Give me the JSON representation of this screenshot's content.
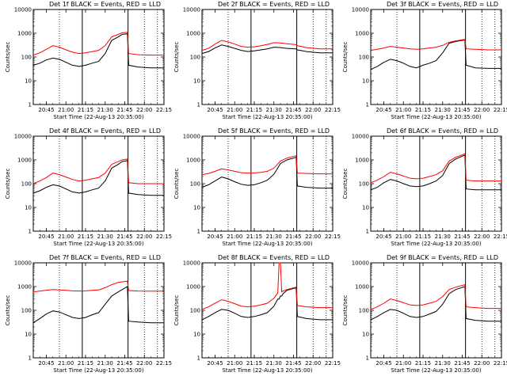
{
  "figure": {
    "series_names": [
      "Events",
      "LLD"
    ],
    "colors": {
      "Events": "#000000",
      "LLD": "#ff0000",
      "axes": "#000000"
    },
    "y_label": "Counts/sec",
    "x_label": "Start Time (22-Aug-13 20:35:00)",
    "x_tick_labels": [
      "20:45",
      "21:00",
      "21:15",
      "21:30",
      "21:45",
      "22:00",
      "22:15"
    ],
    "y_tick_labels": [
      "1",
      "10",
      "100",
      "1000",
      "10000"
    ],
    "y_scale": "log",
    "ylim": [
      1,
      10000
    ],
    "xlim_minutes_after_20_35": [
      0,
      100
    ]
  },
  "chart_data": [
    {
      "type": "line",
      "title": "Det 1f BLACK = Events, RED = LLD",
      "xlabel": "Start Time (22-Aug-13 20:35:00)",
      "ylabel": "Counts/sec",
      "x_minutes_after_20_35": [
        0,
        5,
        10,
        15,
        20,
        25,
        30,
        35,
        40,
        45,
        50,
        55,
        60,
        65,
        68,
        72,
        73,
        80,
        90,
        100
      ],
      "series": [
        {
          "name": "Events",
          "values": [
            45,
            55,
            75,
            90,
            80,
            60,
            45,
            40,
            45,
            55,
            65,
            140,
            500,
            700,
            900,
            950,
            45,
            38,
            35,
            35
          ]
        },
        {
          "name": "LLD",
          "values": [
            120,
            150,
            210,
            300,
            260,
            200,
            160,
            140,
            150,
            170,
            190,
            300,
            700,
            900,
            1050,
            1100,
            140,
            125,
            120,
            120
          ]
        }
      ]
    },
    {
      "type": "line",
      "title": "Det 2f BLACK = Events, RED = LLD",
      "xlabel": "Start Time (22-Aug-13 20:35:00)",
      "ylabel": "Counts/sec",
      "x_minutes_after_20_35": [
        0,
        5,
        10,
        15,
        20,
        25,
        30,
        35,
        40,
        45,
        50,
        55,
        60,
        65,
        72,
        73,
        80,
        90,
        100
      ],
      "series": [
        {
          "name": "Events",
          "values": [
            140,
            170,
            240,
            320,
            280,
            230,
            190,
            170,
            180,
            200,
            220,
            260,
            250,
            230,
            220,
            200,
            170,
            150,
            150
          ]
        },
        {
          "name": "LLD",
          "values": [
            190,
            230,
            350,
            500,
            430,
            350,
            280,
            260,
            270,
            300,
            340,
            400,
            390,
            360,
            330,
            300,
            250,
            220,
            220
          ]
        }
      ]
    },
    {
      "type": "line",
      "title": "Det 3f BLACK = Events, RED = LLD",
      "xlabel": "Start Time (22-Aug-13 20:35:00)",
      "ylabel": "Counts/sec",
      "x_minutes_after_20_35": [
        0,
        5,
        10,
        15,
        20,
        25,
        30,
        35,
        40,
        45,
        50,
        55,
        60,
        65,
        72,
        73,
        80,
        90,
        100
      ],
      "series": [
        {
          "name": "Events",
          "values": [
            30,
            40,
            60,
            80,
            70,
            55,
            40,
            35,
            45,
            55,
            70,
            150,
            380,
            450,
            520,
            45,
            35,
            33,
            33
          ]
        },
        {
          "name": "LLD",
          "values": [
            190,
            210,
            240,
            280,
            260,
            240,
            220,
            210,
            220,
            240,
            260,
            310,
            420,
            480,
            550,
            220,
            210,
            200,
            200
          ]
        }
      ]
    },
    {
      "type": "line",
      "title": "Det 4f BLACK = Events, RED = LLD",
      "xlabel": "Start Time (22-Aug-13 20:35:00)",
      "ylabel": "Counts/sec",
      "x_minutes_after_20_35": [
        0,
        5,
        10,
        15,
        20,
        25,
        30,
        35,
        40,
        45,
        50,
        55,
        60,
        65,
        68,
        72,
        73,
        80,
        90,
        100
      ],
      "series": [
        {
          "name": "Events",
          "values": [
            40,
            50,
            70,
            90,
            80,
            60,
            45,
            40,
            45,
            55,
            65,
            130,
            450,
            650,
            850,
            950,
            40,
            35,
            32,
            32
          ]
        },
        {
          "name": "LLD",
          "values": [
            100,
            130,
            180,
            280,
            240,
            190,
            150,
            130,
            140,
            160,
            180,
            280,
            650,
            850,
            1000,
            1100,
            110,
            100,
            100,
            100
          ]
        }
      ]
    },
    {
      "type": "line",
      "title": "Det 5f BLACK = Events, RED = LLD",
      "xlabel": "Start Time (22-Aug-13 20:35:00)",
      "ylabel": "Counts/sec",
      "x_minutes_after_20_35": [
        0,
        5,
        10,
        15,
        20,
        25,
        30,
        35,
        40,
        45,
        50,
        55,
        60,
        65,
        72,
        73,
        80,
        90,
        100
      ],
      "series": [
        {
          "name": "Events",
          "values": [
            70,
            90,
            130,
            190,
            160,
            120,
            95,
            85,
            90,
            110,
            140,
            250,
            700,
            1000,
            1300,
            80,
            70,
            65,
            65
          ]
        },
        {
          "name": "LLD",
          "values": [
            240,
            270,
            330,
            420,
            380,
            330,
            290,
            280,
            285,
            300,
            330,
            450,
            900,
            1200,
            1500,
            280,
            270,
            260,
            260
          ]
        }
      ]
    },
    {
      "type": "line",
      "title": "Det 6f BLACK = Events, RED = LLD",
      "xlabel": "Start Time (22-Aug-13 20:35:00)",
      "ylabel": "Counts/sec",
      "x_minutes_after_20_35": [
        0,
        5,
        10,
        15,
        20,
        25,
        30,
        35,
        40,
        45,
        50,
        55,
        60,
        65,
        72,
        73,
        80,
        90,
        100
      ],
      "series": [
        {
          "name": "Events",
          "values": [
            55,
            70,
            110,
            150,
            130,
            100,
            80,
            75,
            80,
            100,
            130,
            220,
            700,
            1100,
            1600,
            60,
            55,
            55,
            55
          ]
        },
        {
          "name": "LLD",
          "values": [
            110,
            140,
            200,
            300,
            260,
            210,
            170,
            160,
            170,
            200,
            240,
            350,
            900,
            1300,
            1800,
            140,
            130,
            130,
            130
          ]
        }
      ]
    },
    {
      "type": "line",
      "title": "Det 7f BLACK = Events, RED = LLD",
      "xlabel": "Start Time (22-Aug-13 20:35:00)",
      "ylabel": "Counts/sec",
      "x_minutes_after_20_35": [
        0,
        5,
        10,
        15,
        20,
        25,
        30,
        35,
        40,
        45,
        50,
        55,
        60,
        65,
        72,
        73,
        80,
        90,
        100
      ],
      "series": [
        {
          "name": "Events",
          "values": [
            30,
            45,
            70,
            95,
            85,
            65,
            50,
            45,
            50,
            65,
            80,
            180,
            400,
            600,
            1000,
            35,
            32,
            30,
            30
          ]
        },
        {
          "name": "LLD",
          "values": [
            600,
            650,
            700,
            750,
            720,
            690,
            660,
            650,
            660,
            690,
            720,
            900,
            1200,
            1500,
            1700,
            680,
            650,
            640,
            640
          ]
        }
      ]
    },
    {
      "type": "line",
      "title": "Det 8f BLACK = Events, RED = LLD",
      "xlabel": "Start Time (22-Aug-13 20:35:00)",
      "ylabel": "Counts/sec",
      "x_minutes_after_20_35": [
        0,
        5,
        10,
        15,
        20,
        25,
        30,
        35,
        40,
        45,
        50,
        55,
        58,
        59,
        60,
        61,
        62,
        65,
        72,
        73,
        80,
        90,
        100
      ],
      "series": [
        {
          "name": "Events",
          "values": [
            40,
            55,
            80,
            110,
            100,
            75,
            55,
            50,
            55,
            65,
            80,
            150,
            300,
            300,
            400,
            400,
            500,
            700,
            900,
            55,
            45,
            40,
            40
          ]
        },
        {
          "name": "LLD",
          "values": [
            110,
            140,
            200,
            280,
            240,
            190,
            150,
            140,
            150,
            170,
            200,
            320,
            550,
            10000,
            10000,
            600,
            650,
            750,
            950,
            160,
            140,
            130,
            130
          ]
        }
      ]
    },
    {
      "type": "line",
      "title": "Det 9f BLACK = Events, RED = LLD",
      "xlabel": "Start Time (22-Aug-13 20:35:00)",
      "ylabel": "Counts/sec",
      "x_minutes_after_20_35": [
        0,
        5,
        10,
        15,
        20,
        25,
        30,
        35,
        40,
        45,
        50,
        55,
        60,
        65,
        72,
        73,
        80,
        90,
        100
      ],
      "series": [
        {
          "name": "Events",
          "values": [
            40,
            55,
            80,
            110,
            100,
            75,
            55,
            50,
            55,
            70,
            90,
            180,
            500,
            750,
            1000,
            45,
            38,
            35,
            35
          ]
        },
        {
          "name": "LLD",
          "values": [
            110,
            140,
            200,
            300,
            260,
            210,
            170,
            160,
            170,
            200,
            240,
            380,
            750,
            950,
            1200,
            140,
            130,
            120,
            120
          ]
        }
      ]
    }
  ]
}
